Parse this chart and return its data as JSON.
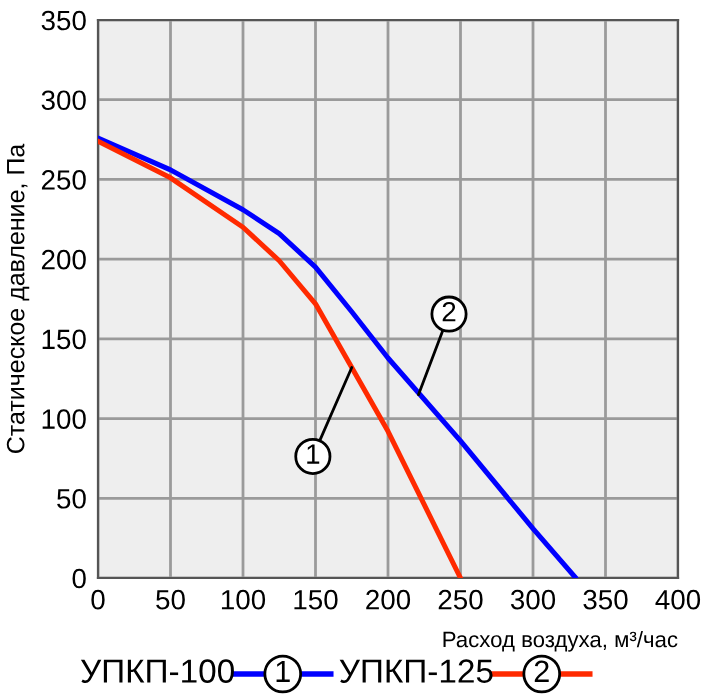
{
  "chart_data": {
    "type": "line",
    "xlabel": "Расход воздуха, м³/час",
    "ylabel": "Статическое давление, Па",
    "series": [
      {
        "name": "УПКП-100",
        "color": "#0000ff",
        "x": [
          0,
          50,
          100,
          125,
          150,
          175,
          200,
          250,
          300,
          329.5
        ],
        "values": [
          276,
          256,
          231,
          216,
          195,
          167,
          138,
          86,
          31,
          0
        ]
      },
      {
        "name": "УПКП-125",
        "color": "#ff2a00",
        "x": [
          0,
          50,
          100,
          125,
          150,
          175,
          200,
          225,
          250
        ],
        "values": [
          274,
          251,
          220,
          199,
          172,
          132,
          92,
          46,
          0
        ]
      }
    ],
    "annotations": [
      {
        "text": "1",
        "x": 175,
        "y": 132
      },
      {
        "text": "2",
        "x": 221,
        "y": 115
      },
      "1",
      "2"
    ],
    "xlim": [
      0,
      400
    ],
    "ylim": [
      0,
      350
    ],
    "xticks": [
      0,
      50,
      100,
      150,
      200,
      250,
      300,
      350,
      400
    ],
    "yticks": [
      0,
      50,
      100,
      150,
      200,
      250,
      300,
      350
    ],
    "grid": true,
    "legend": "bottom"
  }
}
